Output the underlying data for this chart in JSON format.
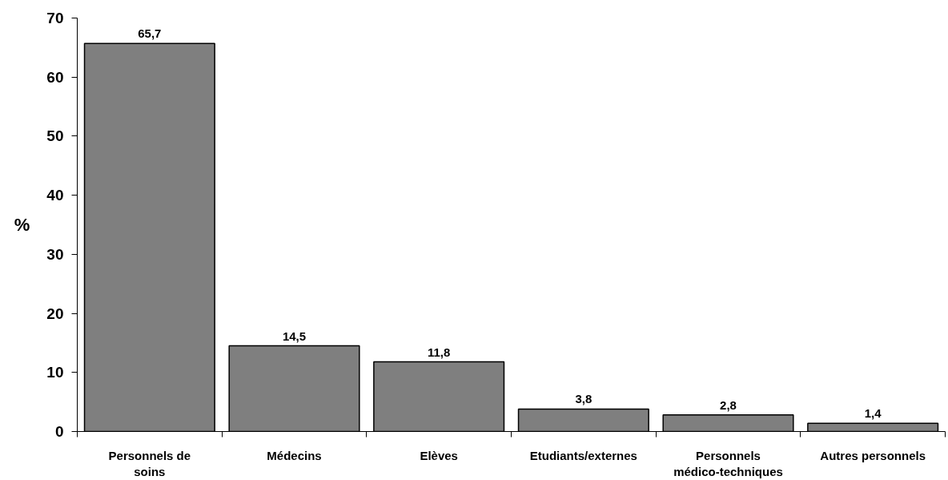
{
  "chart_data": {
    "type": "bar",
    "ylabel": "%",
    "categories": [
      "Personnels de soins",
      "Médecins",
      "Elèves",
      "Etudiants/externes",
      "Personnels médico-techniques",
      "Autres personnels"
    ],
    "values": [
      65.7,
      14.5,
      11.8,
      3.8,
      2.8,
      1.4
    ],
    "value_labels": [
      "65,7",
      "14,5",
      "11,8",
      "3,8",
      "2,8",
      "1,4"
    ],
    "color": "#7f7f7f",
    "ylim": [
      0,
      70
    ],
    "yticks": [
      0,
      10,
      20,
      30,
      40,
      50,
      60,
      70
    ],
    "grid": false
  }
}
